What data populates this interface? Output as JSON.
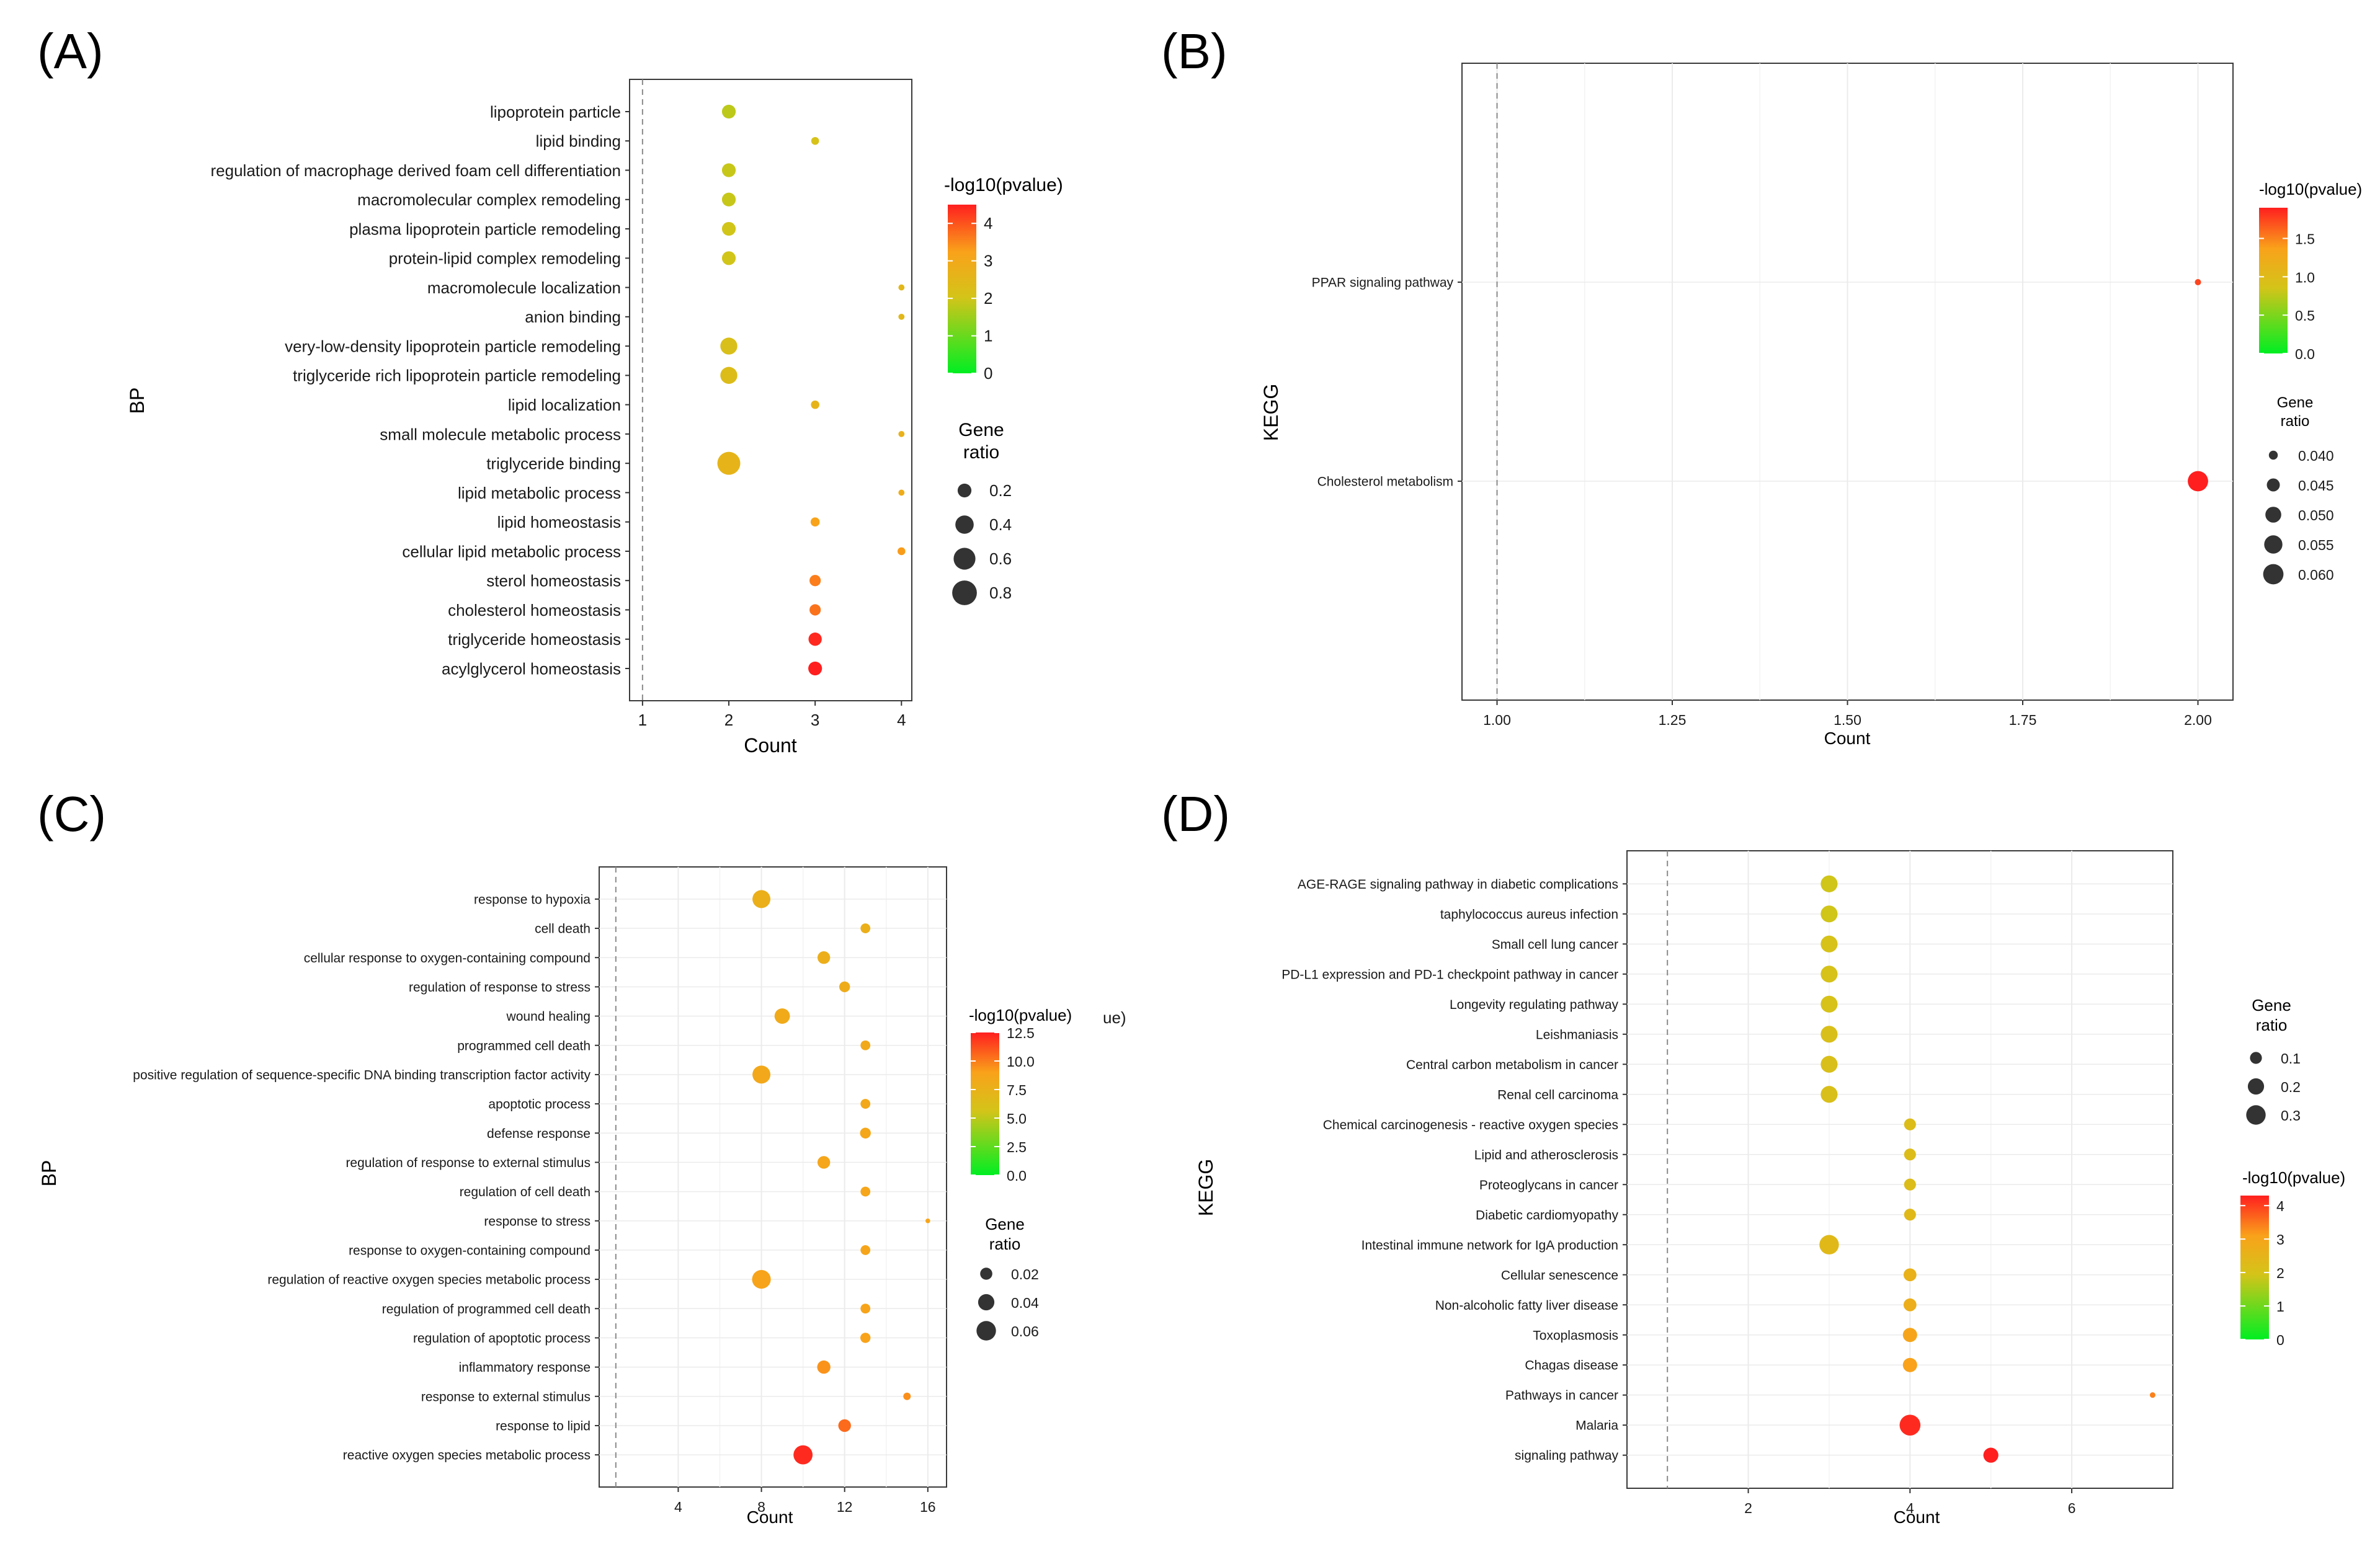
{
  "colors": {
    "low": "#00ee22",
    "mid": "#d4c419",
    "midhigh": "#f9a21a",
    "high": "#ff1f1f",
    "grid": "#ebebeb",
    "reference_line": "#8a8a8a",
    "bubble_legend": "#333333"
  },
  "chart_data": [
    {
      "id": "A",
      "panel_label": "(A)",
      "type": "scatter",
      "xlabel": "Count",
      "ylabel": "BP",
      "xlim": [
        0.85,
        4.12
      ],
      "xticks": [
        1,
        2,
        3,
        4
      ],
      "x_tick_labels": [
        "1",
        "2",
        "3",
        "4"
      ],
      "grid": false,
      "reference_line_x": 1,
      "legend_position": "right",
      "color_legend": {
        "title": "-log10(pvalue)",
        "range": [
          0,
          4.5
        ],
        "ticks": [
          4,
          3,
          2,
          1,
          0
        ],
        "tick_labels": [
          "4",
          "3",
          "2",
          "1",
          "0"
        ]
      },
      "size_legend": {
        "title_lines": [
          "Gene",
          "ratio"
        ],
        "range": [
          0.02,
          0.9
        ],
        "values": [
          0.2,
          0.4,
          0.6,
          0.8
        ],
        "labels": [
          "0.2",
          "0.4",
          "0.6",
          "0.8"
        ]
      },
      "categories": [
        "lipoprotein particle",
        "lipid binding",
        "regulation of macrophage derived foam cell differentiation",
        "macromolecular complex remodeling",
        "plasma lipoprotein particle remodeling",
        "protein-lipid complex remodeling",
        "macromolecule localization",
        "anion binding",
        "very-low-density lipoprotein particle remodeling",
        "triglyceride rich lipoprotein particle remodeling",
        "lipid localization",
        "small molecule metabolic process",
        "triglyceride binding",
        "lipid metabolic process",
        "lipid homeostasis",
        "cellular lipid metabolic process",
        "sterol homeostasis",
        "cholesterol homeostasis",
        "triglyceride homeostasis",
        "acylglycerol homeostasis"
      ],
      "count": [
        2,
        3,
        2,
        2,
        2,
        2,
        4,
        4,
        2,
        2,
        3,
        4,
        2,
        4,
        3,
        4,
        3,
        3,
        3,
        3
      ],
      "neg_log10_pvalue": [
        1.8,
        2.1,
        1.9,
        1.9,
        2.0,
        2.0,
        2.5,
        2.5,
        2.2,
        2.3,
        2.6,
        2.7,
        2.6,
        2.9,
        3.2,
        3.3,
        3.6,
        3.7,
        4.4,
        4.5
      ],
      "gene_ratio": [
        0.2,
        0.05,
        0.2,
        0.2,
        0.2,
        0.2,
        0.03,
        0.03,
        0.33,
        0.33,
        0.06,
        0.03,
        0.67,
        0.03,
        0.07,
        0.05,
        0.12,
        0.12,
        0.18,
        0.2
      ]
    },
    {
      "id": "B",
      "panel_label": "(B)",
      "type": "scatter",
      "xlabel": "Count",
      "ylabel": "KEGG",
      "xlim": [
        0.95,
        2.05
      ],
      "xticks": [
        1.0,
        1.25,
        1.5,
        1.75,
        2.0
      ],
      "x_tick_labels": [
        "1.00",
        "1.25",
        "1.50",
        "1.75",
        "2.00"
      ],
      "grid": true,
      "reference_line_x": 1,
      "legend_position": "right",
      "color_legend": {
        "title": "-log10(pvalue)",
        "range": [
          0,
          1.9
        ],
        "ticks": [
          1.5,
          1.0,
          0.5,
          0.0
        ],
        "tick_labels": [
          "1.5",
          "1.0",
          "0.5",
          "0.0"
        ]
      },
      "size_legend": {
        "title_lines": [
          "Gene",
          "ratio"
        ],
        "range": [
          0.037,
          0.062
        ],
        "values": [
          0.04,
          0.045,
          0.05,
          0.055,
          0.06
        ],
        "labels": [
          "0.040",
          "0.045",
          "0.050",
          "0.055",
          "0.060"
        ]
      },
      "categories": [
        "PPAR signaling pathway",
        "Cholesterol metabolism"
      ],
      "count": [
        2,
        2
      ],
      "neg_log10_pvalue": [
        1.75,
        1.9
      ],
      "gene_ratio": [
        0.038,
        0.06
      ]
    },
    {
      "id": "C",
      "panel_label": "(C)",
      "type": "scatter",
      "xlabel": "Count",
      "ylabel": "BP",
      "xlim": [
        0.2,
        16.9
      ],
      "xticks": [
        4,
        8,
        12,
        16
      ],
      "x_tick_labels": [
        "4",
        "8",
        "12",
        "16"
      ],
      "grid": true,
      "reference_line_x": 1,
      "legend_position": "right",
      "legend_fragment": "ue)",
      "color_legend": {
        "title": "-log10(pvalue)",
        "range": [
          0,
          12.5
        ],
        "ticks": [
          12.5,
          10.0,
          7.5,
          5.0,
          2.5,
          0.0
        ],
        "tick_labels": [
          "12.5",
          "10.0",
          "7.5",
          "5.0",
          "2.5",
          "0.0"
        ]
      },
      "size_legend": {
        "title_lines": [
          "Gene",
          "ratio"
        ],
        "range": [
          0.001,
          0.072
        ],
        "values": [
          0.02,
          0.04,
          0.06
        ],
        "labels": [
          "0.02",
          "0.04",
          "0.06"
        ]
      },
      "categories": [
        "response to hypoxia",
        "cell death",
        "cellular response to oxygen-containing compound",
        "regulation of response to stress",
        "wound healing",
        "programmed cell death",
        "positive regulation of sequence-specific DNA binding transcription factor activity",
        "apoptotic process",
        "defense response",
        "regulation of response to external stimulus",
        "regulation of cell death",
        "response to stress",
        "response to oxygen-containing compound",
        "regulation of reactive oxygen species metabolic process",
        "regulation of programmed cell death",
        "regulation of apoptotic process",
        "inflammatory response",
        "response to external stimulus",
        "response to lipid",
        "reactive oxygen species metabolic process"
      ],
      "count": [
        8,
        13,
        11,
        12,
        9,
        13,
        8,
        13,
        13,
        11,
        13,
        16,
        13,
        8,
        13,
        13,
        11,
        15,
        12,
        10
      ],
      "neg_log10_pvalue": [
        7.7,
        7.7,
        7.8,
        8.0,
        8.2,
        8.3,
        8.4,
        8.4,
        8.5,
        8.6,
        8.6,
        8.7,
        8.7,
        8.8,
        8.8,
        8.9,
        9.4,
        9.5,
        10.5,
        12.2
      ],
      "gene_ratio": [
        0.05,
        0.012,
        0.022,
        0.015,
        0.035,
        0.012,
        0.05,
        0.012,
        0.015,
        0.022,
        0.012,
        0.002,
        0.012,
        0.055,
        0.012,
        0.013,
        0.025,
        0.006,
        0.022,
        0.058
      ]
    },
    {
      "id": "D",
      "panel_label": "(D)",
      "type": "scatter",
      "xlabel": "Count",
      "ylabel": "KEGG",
      "xlim": [
        0.5,
        7.25
      ],
      "xticks": [
        2,
        4,
        6
      ],
      "x_tick_labels": [
        "2",
        "4",
        "6"
      ],
      "grid": true,
      "reference_line_x": 1,
      "legend_position": "right",
      "color_legend": {
        "title": "-log10(pvalue)",
        "range": [
          0,
          4.3
        ],
        "ticks": [
          4,
          3,
          2,
          1,
          0
        ],
        "tick_labels": [
          "4",
          "3",
          "2",
          "1",
          "0"
        ]
      },
      "size_legend": {
        "title_lines": [
          "Gene",
          "ratio"
        ],
        "range": [
          0.01,
          0.36
        ],
        "values": [
          0.1,
          0.2,
          0.3
        ],
        "labels": [
          "0.1",
          "0.2",
          "0.3"
        ]
      },
      "categories": [
        "AGE-RAGE signaling pathway in diabetic complications",
        "taphylococcus aureus infection",
        "Small cell lung cancer",
        "PD-L1 expression and PD-1 checkpoint pathway in cancer",
        "Longevity regulating pathway",
        "Leishmaniasis",
        "Central carbon metabolism in cancer",
        "Renal cell carcinoma",
        "Chemical carcinogenesis - reactive oxygen species",
        "Lipid and atherosclerosis",
        "Proteoglycans in cancer",
        "Diabetic cardiomyopathy",
        "Intestinal immune network for IgA production",
        "Cellular senescence",
        "Non-alcoholic fatty liver disease",
        "Toxoplasmosis",
        "Chagas disease",
        "Pathways in cancer",
        "Malaria",
        "signaling pathway"
      ],
      "count": [
        3,
        3,
        3,
        3,
        3,
        3,
        3,
        3,
        4,
        4,
        4,
        4,
        3,
        4,
        4,
        4,
        4,
        7,
        4,
        5
      ],
      "neg_log10_pvalue": [
        1.9,
        1.9,
        2.0,
        2.0,
        2.0,
        2.1,
        2.1,
        2.1,
        2.2,
        2.2,
        2.2,
        2.3,
        2.3,
        2.6,
        2.7,
        3.0,
        3.1,
        3.4,
        4.2,
        4.3
      ],
      "gene_ratio": [
        0.22,
        0.22,
        0.22,
        0.22,
        0.22,
        0.22,
        0.22,
        0.22,
        0.1,
        0.1,
        0.1,
        0.1,
        0.3,
        0.12,
        0.12,
        0.15,
        0.15,
        0.02,
        0.35,
        0.17
      ]
    }
  ]
}
